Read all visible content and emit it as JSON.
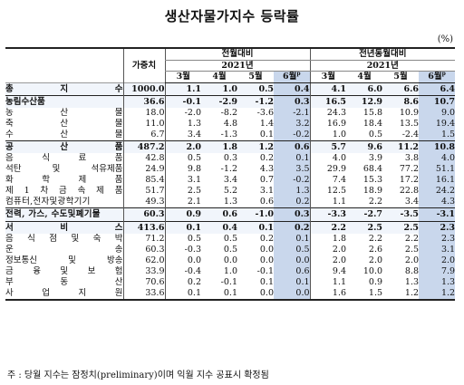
{
  "title": "생산자물가지수 등락률",
  "unit": "(%)",
  "header": {
    "weight": "가중치",
    "mom_group": "전월대비",
    "yoy_group": "전년동월대비",
    "year": "2021년",
    "months": [
      "3월",
      "4월",
      "5월",
      "6월"
    ],
    "prelim_mark": "p"
  },
  "rows": [
    {
      "label": "총 지 수",
      "weight": "1000.0",
      "mom": [
        "1.1",
        "1.0",
        "0.5",
        "0.4"
      ],
      "yoy": [
        "4.1",
        "6.0",
        "6.6",
        "6.4"
      ]
    },
    {
      "label": "농림수산품",
      "weight": "36.6",
      "mom": [
        "-0.1",
        "-2.9",
        "-1.2",
        "0.3"
      ],
      "yoy": [
        "16.5",
        "12.9",
        "8.6",
        "10.7"
      ]
    },
    {
      "label": "농 산 물",
      "weight": "18.0",
      "mom": [
        "-2.0",
        "-8.2",
        "-3.6",
        "-2.1"
      ],
      "yoy": [
        "24.3",
        "15.8",
        "10.9",
        "9.0"
      ]
    },
    {
      "label": "축 산 물",
      "weight": "11.0",
      "mom": [
        "1.3",
        "4.8",
        "1.4",
        "3.2"
      ],
      "yoy": [
        "16.9",
        "18.4",
        "13.5",
        "19.4"
      ]
    },
    {
      "label": "수 산 물",
      "weight": "6.7",
      "mom": [
        "3.4",
        "-1.3",
        "0.1",
        "-0.2"
      ],
      "yoy": [
        "1.0",
        "0.5",
        "-2.4",
        "1.5"
      ]
    },
    {
      "label": "공 산 품",
      "weight": "487.2",
      "mom": [
        "2.0",
        "1.8",
        "1.2",
        "0.6"
      ],
      "yoy": [
        "5.7",
        "9.6",
        "11.2",
        "10.8"
      ]
    },
    {
      "label": "음 식 료 품",
      "weight": "42.8",
      "mom": [
        "0.5",
        "0.3",
        "0.2",
        "0.1"
      ],
      "yoy": [
        "4.0",
        "3.9",
        "3.8",
        "4.0"
      ]
    },
    {
      "label": "석탄 및 석유제품",
      "weight": "24.9",
      "mom": [
        "9.8",
        "-1.2",
        "4.3",
        "3.5"
      ],
      "yoy": [
        "29.9",
        "68.4",
        "77.2",
        "51.1"
      ]
    },
    {
      "label": "화 학 제 품",
      "weight": "85.4",
      "mom": [
        "3.1",
        "3.4",
        "0.7",
        "-0.2"
      ],
      "yoy": [
        "7.4",
        "15.3",
        "17.2",
        "16.1"
      ]
    },
    {
      "label": "제 1 차 금 속 제 품",
      "weight": "51.7",
      "mom": [
        "2.5",
        "5.2",
        "3.1",
        "1.3"
      ],
      "yoy": [
        "12.5",
        "18.9",
        "22.8",
        "24.2"
      ]
    },
    {
      "label": "컴퓨터,전자및광학기기",
      "weight": "49.3",
      "mom": [
        "2.1",
        "1.3",
        "0.6",
        "0.2"
      ],
      "yoy": [
        "1.1",
        "2.2",
        "3.4",
        "4.3"
      ]
    },
    {
      "label": "전력, 가스, 수도및폐기물",
      "weight": "60.3",
      "mom": [
        "0.9",
        "0.6",
        "-1.0",
        "0.3"
      ],
      "yoy": [
        "-3.3",
        "-2.7",
        "-3.5",
        "-3.1"
      ]
    },
    {
      "label": "서 비 스",
      "weight": "413.6",
      "mom": [
        "0.1",
        "0.4",
        "0.1",
        "0.2"
      ],
      "yoy": [
        "2.2",
        "2.5",
        "2.5",
        "2.3"
      ]
    },
    {
      "label": "음 식 점 및 숙 박",
      "weight": "71.2",
      "mom": [
        "0.5",
        "0.5",
        "0.2",
        "0.1"
      ],
      "yoy": [
        "1.8",
        "2.2",
        "2.2",
        "2.3"
      ]
    },
    {
      "label": "운 송",
      "weight": "60.3",
      "mom": [
        "-0.3",
        "0.5",
        "0.0",
        "0.5"
      ],
      "yoy": [
        "2.0",
        "2.6",
        "2.5",
        "3.1"
      ]
    },
    {
      "label": "정보통신 및 방송",
      "weight": "62.0",
      "mom": [
        "0.0",
        "0.0",
        "0.0",
        "0.0"
      ],
      "yoy": [
        "2.0",
        "2.0",
        "2.0",
        "2.0"
      ]
    },
    {
      "label": "금 융 및 보 험",
      "weight": "33.9",
      "mom": [
        "-0.4",
        "1.0",
        "-0.1",
        "0.6"
      ],
      "yoy": [
        "9.4",
        "10.0",
        "8.8",
        "7.9"
      ]
    },
    {
      "label": "부 동 산",
      "weight": "70.6",
      "mom": [
        "0.2",
        "-0.1",
        "0.1",
        "0.1"
      ],
      "yoy": [
        "1.1",
        "0.9",
        "1.3",
        "1.3"
      ]
    },
    {
      "label": "사 업 지 원",
      "weight": "33.6",
      "mom": [
        "0.1",
        "0.1",
        "0.0",
        "0.0"
      ],
      "yoy": [
        "1.6",
        "1.5",
        "1.2",
        "1.2"
      ]
    }
  ],
  "note": "주 : 당월 지수는 잠정치(preliminary)이며 익월 지수 공표시 확정됨"
}
